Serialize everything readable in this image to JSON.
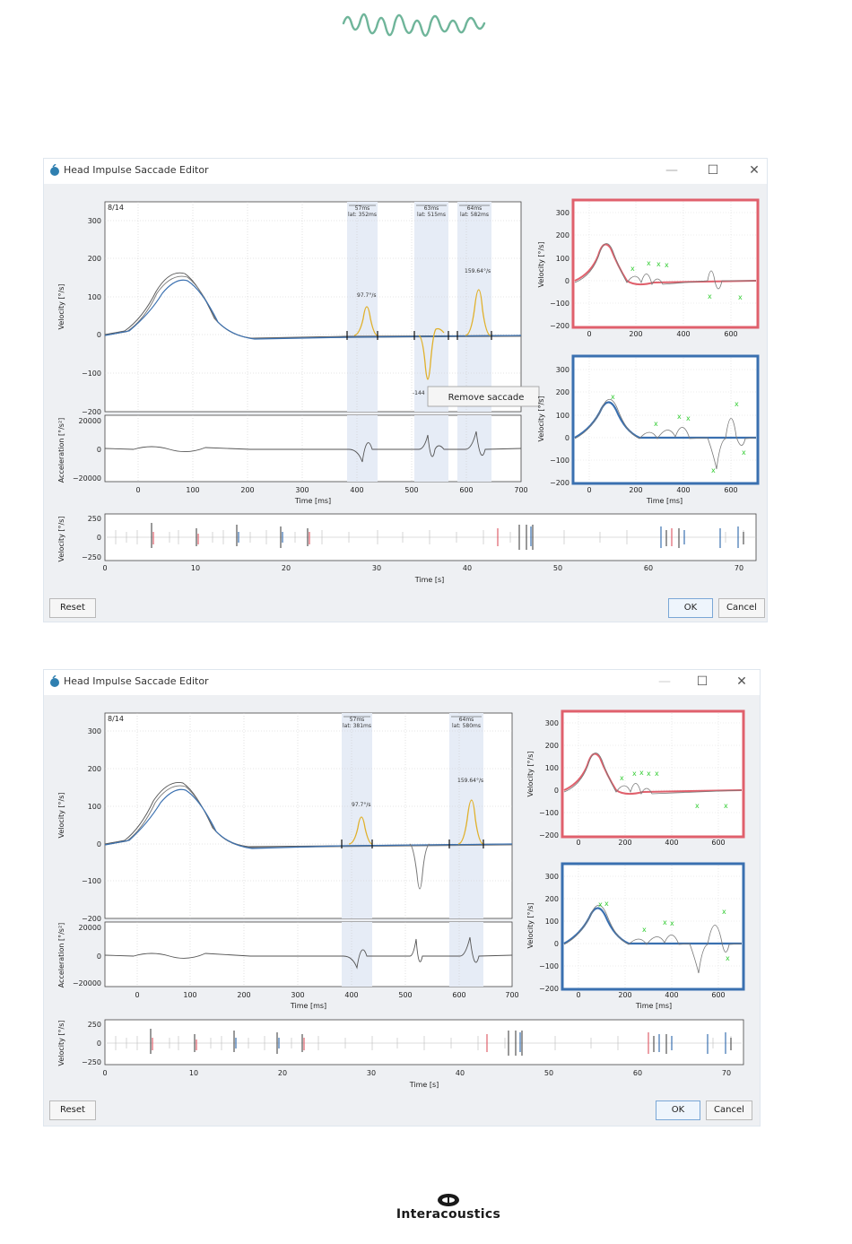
{
  "logo_top": {
    "name": "waveform-logo"
  },
  "footer_brand": {
    "text": "Interacoustics"
  },
  "windows": [
    {
      "title": "Head Impulse Saccade Editor",
      "trial": "8/14",
      "window_buttons": {
        "minimize": "—",
        "maximize": "☐",
        "close": "✕"
      },
      "main_plot": {
        "ylabel": "Velocity [°/s]",
        "yticks": [
          "300",
          "200",
          "100",
          "0",
          "−100",
          "−200"
        ],
        "bands": [
          {
            "dur": "57ms",
            "lat": "lat: 352ms"
          },
          {
            "dur": "63ms",
            "lat": "lat: 515ms"
          },
          {
            "dur": "64ms",
            "lat": "lat: 582ms"
          }
        ],
        "peak_labels": [
          "97.7°/s",
          "159.64°/s",
          "-144"
        ]
      },
      "context_menu": {
        "item": "Remove saccade"
      },
      "accel_plot": {
        "ylabel": "Acceleration [°/s²]",
        "yticks": [
          "20000",
          "0",
          "−20000"
        ],
        "xticks": [
          "0",
          "100",
          "200",
          "300",
          "400",
          "500",
          "600",
          "700"
        ],
        "xlabel": "Time [ms]"
      },
      "right_top": {
        "ylabel": "Velocity [°/s]",
        "yticks": [
          "300",
          "200",
          "100",
          "0",
          "−100",
          "−200"
        ],
        "xticks": [
          "0",
          "200",
          "400",
          "600"
        ],
        "color": "#e0606c"
      },
      "right_bottom": {
        "ylabel": "Velocity [°/s]",
        "yticks": [
          "300",
          "200",
          "100",
          "0",
          "−100",
          "−200"
        ],
        "xticks": [
          "0",
          "200",
          "400",
          "600"
        ],
        "xlabel": "Time [ms]",
        "color": "#3a70b0"
      },
      "overview": {
        "ylabel": "Velocity [°/s]",
        "yticks": [
          "250",
          "0",
          "−250"
        ],
        "xticks": [
          "0",
          "10",
          "20",
          "30",
          "40",
          "50",
          "60",
          "70"
        ],
        "xlabel": "Time [s]"
      },
      "buttons": {
        "reset": "Reset",
        "ok": "OK",
        "cancel": "Cancel"
      }
    },
    {
      "title": "Head Impulse Saccade Editor",
      "trial": "8/14",
      "window_buttons": {
        "minimize": "—",
        "maximize": "☐",
        "close": "✕"
      },
      "main_plot": {
        "ylabel": "Velocity [°/s]",
        "yticks": [
          "300",
          "200",
          "100",
          "0",
          "−100",
          "−200"
        ],
        "bands": [
          {
            "dur": "57ms",
            "lat": "lat: 381ms"
          },
          {
            "dur": "64ms",
            "lat": "lat: 580ms"
          }
        ],
        "peak_labels": [
          "97.7°/s",
          "159.64°/s"
        ]
      },
      "accel_plot": {
        "ylabel": "Acceleration [°/s²]",
        "yticks": [
          "20000",
          "0",
          "−20000"
        ],
        "xticks": [
          "0",
          "100",
          "200",
          "300",
          "400",
          "500",
          "600",
          "700"
        ],
        "xlabel": "Time [ms]"
      },
      "right_top": {
        "ylabel": "Velocity [°/s]",
        "yticks": [
          "300",
          "200",
          "100",
          "0",
          "−100",
          "−200"
        ],
        "xticks": [
          "0",
          "200",
          "400",
          "600"
        ],
        "color": "#e0606c"
      },
      "right_bottom": {
        "ylabel": "Velocity [°/s]",
        "yticks": [
          "300",
          "200",
          "100",
          "0",
          "−100",
          "−200"
        ],
        "xticks": [
          "0",
          "200",
          "400",
          "600"
        ],
        "xlabel": "Time [ms]",
        "color": "#3a70b0"
      },
      "overview": {
        "ylabel": "Velocity [°/s]",
        "yticks": [
          "250",
          "0",
          "−250"
        ],
        "xticks": [
          "0",
          "10",
          "20",
          "30",
          "40",
          "50",
          "60",
          "70"
        ],
        "xlabel": "Time [s]"
      },
      "buttons": {
        "reset": "Reset",
        "ok": "OK",
        "cancel": "Cancel"
      }
    }
  ]
}
